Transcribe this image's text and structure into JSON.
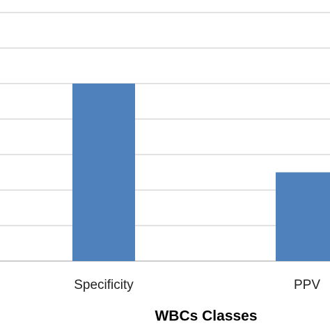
{
  "chart_data": {
    "type": "bar",
    "x_label": "WBCs Classes",
    "categories": [
      "Specificity",
      "PPV"
    ],
    "values": [
      5,
      2.5
    ],
    "color": "#4f81bd",
    "ylim": [
      0,
      7.35
    ],
    "yticks": [
      0,
      1,
      2,
      3,
      4,
      5,
      6,
      7
    ],
    "grid": true
  }
}
